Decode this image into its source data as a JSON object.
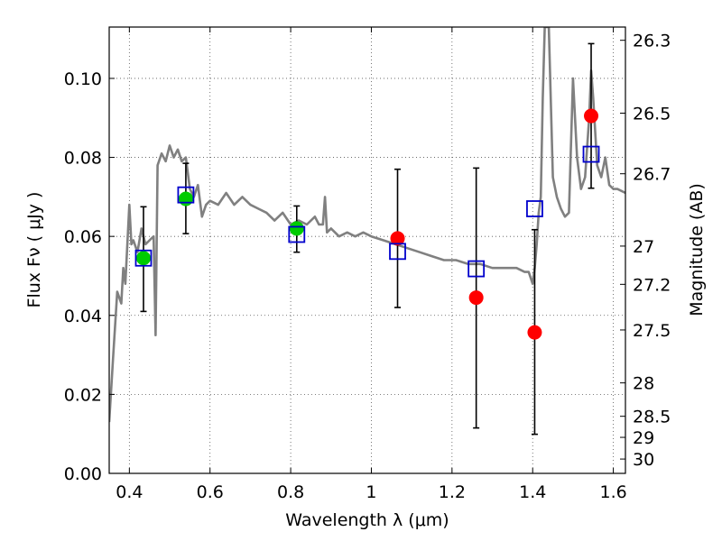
{
  "chart_data": {
    "type": "scatter",
    "xlabel": "Wavelength  λ (μm)",
    "ylabel": "Flux  Fν  ( μJy )",
    "y2label": "Magnitude (AB)",
    "xlim": [
      0.35,
      1.63
    ],
    "ylim": [
      0.0,
      0.113
    ],
    "grid": true,
    "xticks": [
      0.4,
      0.6,
      0.8,
      1.0,
      1.2,
      1.4,
      1.6
    ],
    "xtick_labels": [
      "0.4",
      "0.6",
      "0.8",
      "1",
      "1.2",
      "1.4",
      "1.6"
    ],
    "yticks": [
      0.0,
      0.02,
      0.04,
      0.06,
      0.08,
      0.1
    ],
    "ytick_labels": [
      "0.00",
      "0.02",
      "0.04",
      "0.06",
      "0.08",
      "0.10"
    ],
    "y2ticks": [
      26.3,
      26.5,
      26.7,
      27,
      27.2,
      27.5,
      28,
      28.5,
      29,
      30
    ],
    "y2tick_labels": [
      "26.3",
      "26.5",
      "26.7",
      "27",
      "27.2",
      "27.5",
      "28",
      "28.5",
      "29",
      "30"
    ],
    "model_spectrum": {
      "color": "#808080",
      "x": [
        0.35,
        0.36,
        0.37,
        0.38,
        0.385,
        0.39,
        0.4,
        0.405,
        0.41,
        0.42,
        0.43,
        0.44,
        0.45,
        0.46,
        0.465,
        0.47,
        0.48,
        0.49,
        0.5,
        0.51,
        0.52,
        0.53,
        0.54,
        0.55,
        0.56,
        0.57,
        0.58,
        0.59,
        0.6,
        0.62,
        0.64,
        0.66,
        0.68,
        0.7,
        0.72,
        0.74,
        0.76,
        0.78,
        0.8,
        0.82,
        0.84,
        0.86,
        0.87,
        0.88,
        0.885,
        0.89,
        0.9,
        0.92,
        0.94,
        0.96,
        0.98,
        1.0,
        1.03,
        1.06,
        1.09,
        1.12,
        1.15,
        1.18,
        1.21,
        1.24,
        1.27,
        1.3,
        1.33,
        1.36,
        1.38,
        1.39,
        1.4,
        1.405,
        1.41,
        1.415,
        1.42,
        1.425,
        1.43,
        1.44,
        1.45,
        1.46,
        1.47,
        1.48,
        1.49,
        1.5,
        1.51,
        1.52,
        1.53,
        1.54,
        1.545,
        1.55,
        1.56,
        1.57,
        1.58,
        1.59,
        1.6,
        1.61,
        1.63
      ],
      "y": [
        0.013,
        0.03,
        0.046,
        0.043,
        0.052,
        0.048,
        0.068,
        0.058,
        0.059,
        0.056,
        0.062,
        0.058,
        0.059,
        0.06,
        0.035,
        0.078,
        0.081,
        0.079,
        0.083,
        0.08,
        0.082,
        0.079,
        0.08,
        0.072,
        0.07,
        0.073,
        0.065,
        0.068,
        0.069,
        0.068,
        0.071,
        0.068,
        0.07,
        0.068,
        0.067,
        0.066,
        0.064,
        0.066,
        0.063,
        0.064,
        0.063,
        0.065,
        0.063,
        0.063,
        0.07,
        0.061,
        0.062,
        0.06,
        0.061,
        0.06,
        0.061,
        0.06,
        0.059,
        0.058,
        0.057,
        0.056,
        0.055,
        0.054,
        0.054,
        0.053,
        0.053,
        0.052,
        0.052,
        0.052,
        0.051,
        0.051,
        0.048,
        0.052,
        0.058,
        0.066,
        0.07,
        0.095,
        0.113,
        0.113,
        0.075,
        0.07,
        0.067,
        0.065,
        0.066,
        0.1,
        0.08,
        0.072,
        0.075,
        0.09,
        0.102,
        0.095,
        0.078,
        0.075,
        0.08,
        0.073,
        0.072,
        0.072,
        0.071
      ]
    },
    "series": [
      {
        "marker": "circle",
        "color": "#00cc00",
        "x": [
          0.435,
          0.54,
          0.815
        ],
        "y": [
          0.0545,
          0.0695,
          0.062
        ]
      },
      {
        "marker": "circle",
        "color": "#ff0000",
        "x": [
          1.065,
          1.26,
          1.405,
          1.545
        ],
        "y": [
          0.0595,
          0.0445,
          0.0357,
          0.0905
        ]
      },
      {
        "marker": "square",
        "color": "#0000cc",
        "x": [
          0.435,
          0.54,
          0.815,
          1.065,
          1.26,
          1.405,
          1.545
        ],
        "y": [
          0.0545,
          0.0705,
          0.0605,
          0.0562,
          0.0518,
          0.067,
          0.0808
        ]
      }
    ],
    "error_bars": {
      "color": "#000000",
      "x": [
        0.435,
        0.54,
        0.815,
        1.065,
        1.26,
        1.405,
        1.545
      ],
      "y_low": [
        0.041,
        0.0607,
        0.056,
        0.042,
        0.0115,
        0.0099,
        0.0722
      ],
      "y_high": [
        0.0675,
        0.0785,
        0.0677,
        0.077,
        0.0773,
        0.0617,
        0.1088
      ]
    }
  }
}
